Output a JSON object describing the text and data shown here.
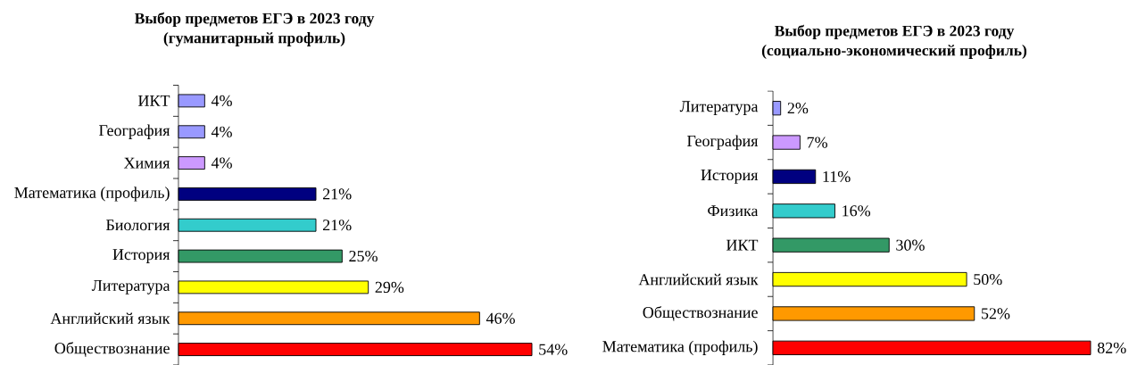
{
  "chart_data": [
    {
      "type": "bar",
      "orientation": "horizontal",
      "title": "Выбор предметов ЕГЭ в 2023 году",
      "subtitle": "(гуманитарный профиль)",
      "categories": [
        "ИКТ",
        "География",
        "Химия",
        "Математика (профиль)",
        "Биология",
        "История",
        "Литература",
        "Английский язык",
        "Обществознание"
      ],
      "values": [
        4,
        4,
        4,
        21,
        21,
        25,
        29,
        46,
        54
      ],
      "colors": [
        "#9999ff",
        "#9999ff",
        "#cc99ff",
        "#000080",
        "#33cccc",
        "#339966",
        "#ffff00",
        "#ff9900",
        "#ff0000"
      ],
      "value_labels": [
        "4%",
        "4%",
        "4%",
        "21%",
        "21%",
        "25%",
        "29%",
        "46%",
        "54%"
      ]
    },
    {
      "type": "bar",
      "orientation": "horizontal",
      "title": "Выбор предметов ЕГЭ в 2023 году",
      "subtitle": "(социально-экономический профиль)",
      "categories": [
        "Литература",
        "География",
        "История",
        "Физика",
        "ИКТ",
        "Английский язык",
        "Обществознание",
        "Математика (профиль)"
      ],
      "values": [
        2,
        7,
        11,
        16,
        30,
        50,
        52,
        82
      ],
      "colors": [
        "#9999ff",
        "#cc99ff",
        "#000080",
        "#33cccc",
        "#339966",
        "#ffff00",
        "#ff9900",
        "#ff0000"
      ],
      "value_labels": [
        "2%",
        "7%",
        "11%",
        "16%",
        "30%",
        "50%",
        "52%",
        "82%"
      ]
    }
  ]
}
